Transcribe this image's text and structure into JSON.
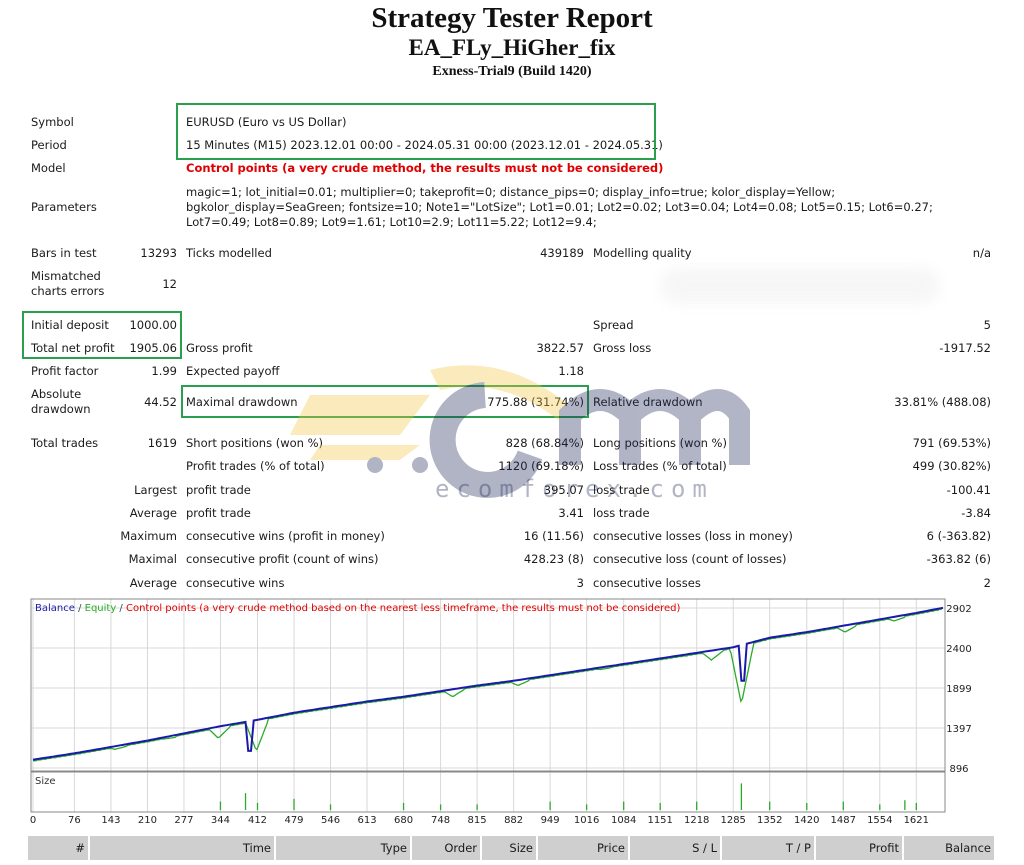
{
  "header": {
    "title": "Strategy Tester Report",
    "expert": "EA_FLy_HiGher_fix",
    "server": "Exness-Trial9 (Build 1420)"
  },
  "info": {
    "symbol_label": "Symbol",
    "symbol_value": "EURUSD (Euro vs US Dollar)",
    "period_label": "Period",
    "period_value": "15 Minutes (M15) 2023.12.01 00:00 - 2024.05.31 00:00 (2023.12.01 - 2024.05.31)",
    "model_label": "Model",
    "model_value": "Control points (a very crude method, the results must not be considered)",
    "parameters_label": "Parameters",
    "parameters_value": "magic=1; lot_initial=0.01; multiplier=0; takeprofit=0; distance_pips=0; display_info=true; kolor_display=Yellow; bgkolor_display=SeaGreen; fontsize=10; Note1=\"LotSize\"; Lot1=0.01; Lot2=0.02; Lot3=0.04; Lot4=0.08; Lot5=0.15; Lot6=0.27; Lot7=0.49; Lot8=0.89; Lot9=1.61; Lot10=2.9; Lot11=5.22; Lot12=9.4;"
  },
  "stats": {
    "bars_label": "Bars in test",
    "bars_value": "13293",
    "ticks_label": "Ticks modelled",
    "ticks_value": "439189",
    "quality_label": "Modelling quality",
    "quality_value": "n/a",
    "mismatch_label_1": "Mismatched",
    "mismatch_label_2": "charts errors",
    "mismatch_value": "12",
    "deposit_label": "Initial deposit",
    "deposit_value": "1000.00",
    "spread_label": "Spread",
    "spread_value": "5",
    "netprofit_label": "Total net profit",
    "netprofit_value": "1905.06",
    "grossprofit_label": "Gross profit",
    "grossprofit_value": "3822.57",
    "grossloss_label": "Gross loss",
    "grossloss_value": "-1917.52",
    "pf_label": "Profit factor",
    "pf_value": "1.99",
    "payoff_label": "Expected payoff",
    "payoff_value": "1.18",
    "absdd_label_1": "Absolute",
    "absdd_label_2": "drawdown",
    "absdd_value": "44.52",
    "maxdd_label": "Maximal drawdown",
    "maxdd_value": "775.88 (31.74%)",
    "reldd_label": "Relative drawdown",
    "reldd_value": "33.81% (488.08)",
    "trades_label": "Total trades",
    "trades_value": "1619",
    "short_label": "Short positions (won %)",
    "short_value": "828 (68.84%)",
    "long_label": "Long positions (won %)",
    "long_value": "791 (69.53%)",
    "ptrades_label": "Profit trades (% of total)",
    "ptrades_value": "1120 (69.18%)",
    "ltrades_label": "Loss trades (% of total)",
    "ltrades_value": "499 (30.82%)",
    "largest_label": "Largest",
    "largest_pt_label": "profit trade",
    "largest_pt_value": "395.07",
    "largest_lt_label": "loss trade",
    "largest_lt_value": "-100.41",
    "average_label": "Average",
    "average_pt_label": "profit trade",
    "average_pt_value": "3.41",
    "average_lt_label": "loss trade",
    "average_lt_value": "-3.84",
    "maximum_label": "Maximum",
    "max_cw_label": "consecutive wins (profit in money)",
    "max_cw_value": "16 (11.56)",
    "max_cl_label": "consecutive losses (loss in money)",
    "max_cl_value": "6 (-363.82)",
    "maximal_label": "Maximal",
    "mxl_cp_label": "consecutive profit (count of wins)",
    "mxl_cp_value": "428.23 (8)",
    "mxl_cl_label": "consecutive loss (count of losses)",
    "mxl_cl_value": "-363.82 (6)",
    "avg2_label": "Average",
    "avg_cw_label": "consecutive wins",
    "avg_cw_value": "3",
    "avg_cl_label": "consecutive losses",
    "avg_cl_value": "2"
  },
  "watermark": {
    "brand": "ecomforex.com",
    "colors": {
      "yellow": "#f5c842",
      "navy": "#1f2a5a"
    }
  },
  "chart_data": {
    "type": "line",
    "title": "",
    "legend": [
      "Balance",
      "Equity",
      "Control points (a very crude method based on the nearest less timeframe, the results must not be considered)"
    ],
    "legend_separators": [
      " / ",
      " / "
    ],
    "colors": {
      "balance": "#1a1aaa",
      "equity": "#2aaa2a",
      "note": "#e00000",
      "size": "#2aaa2a"
    },
    "yticks": [
      2902,
      2400,
      1899,
      1397,
      896
    ],
    "ylim": [
      896,
      2990
    ],
    "xticks": [
      0,
      76,
      143,
      210,
      277,
      344,
      412,
      479,
      546,
      613,
      680,
      748,
      815,
      882,
      949,
      1016,
      1084,
      1151,
      1218,
      1285,
      1352,
      1420,
      1487,
      1554,
      1621
    ],
    "xlim": [
      0,
      1670
    ],
    "size_label": "Size",
    "balance": [
      [
        0,
        1000
      ],
      [
        76,
        1080
      ],
      [
        143,
        1160
      ],
      [
        210,
        1240
      ],
      [
        277,
        1330
      ],
      [
        344,
        1420
      ],
      [
        412,
        1500
      ],
      [
        479,
        1590
      ],
      [
        546,
        1660
      ],
      [
        613,
        1730
      ],
      [
        680,
        1790
      ],
      [
        748,
        1860
      ],
      [
        815,
        1930
      ],
      [
        882,
        1990
      ],
      [
        949,
        2060
      ],
      [
        1016,
        2130
      ],
      [
        1084,
        2200
      ],
      [
        1151,
        2270
      ],
      [
        1218,
        2340
      ],
      [
        1285,
        2410
      ],
      [
        1352,
        2530
      ],
      [
        1420,
        2600
      ],
      [
        1487,
        2680
      ],
      [
        1554,
        2760
      ],
      [
        1621,
        2840
      ],
      [
        1670,
        2905
      ]
    ],
    "balance_drops": [
      [
        395,
        1300,
        1110
      ],
      [
        1300,
        2400,
        1990
      ]
    ],
    "equity_dips": [
      [
        150,
        1130
      ],
      [
        240,
        1260
      ],
      [
        340,
        1270
      ],
      [
        410,
        1110
      ],
      [
        770,
        1790
      ],
      [
        890,
        1930
      ],
      [
        1040,
        2130
      ],
      [
        1180,
        2300
      ],
      [
        1245,
        2250
      ],
      [
        1300,
        1700
      ],
      [
        1490,
        2600
      ],
      [
        1580,
        2740
      ]
    ],
    "size_bars": [
      [
        344,
        0.3
      ],
      [
        390,
        0.6
      ],
      [
        412,
        0.25
      ],
      [
        479,
        0.4
      ],
      [
        546,
        0.2
      ],
      [
        680,
        0.25
      ],
      [
        748,
        0.2
      ],
      [
        815,
        0.2
      ],
      [
        949,
        0.3
      ],
      [
        1016,
        0.2
      ],
      [
        1084,
        0.3
      ],
      [
        1151,
        0.25
      ],
      [
        1218,
        0.3
      ],
      [
        1300,
        0.95
      ],
      [
        1352,
        0.3
      ],
      [
        1420,
        0.25
      ],
      [
        1487,
        0.3
      ],
      [
        1554,
        0.2
      ],
      [
        1600,
        0.35
      ],
      [
        1621,
        0.25
      ]
    ]
  },
  "table": {
    "headers": [
      "#",
      "Time",
      "Type",
      "Order",
      "Size",
      "Price",
      "S / L",
      "T / P",
      "Profit",
      "Balance"
    ]
  }
}
